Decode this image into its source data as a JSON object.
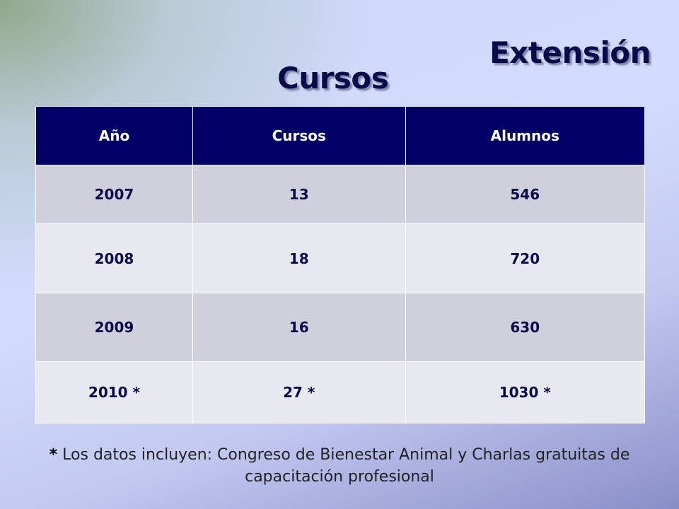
{
  "header": {
    "title": "Extensión",
    "subtitle": "Cursos"
  },
  "table": {
    "columns": [
      "Año",
      "Cursos",
      "Alumnos"
    ],
    "rows": [
      [
        "2007",
        "13",
        "546"
      ],
      [
        "2008",
        "18",
        "720"
      ],
      [
        "2009",
        "16",
        "630"
      ],
      [
        "2010 *",
        "27 *",
        "1030 *"
      ]
    ]
  },
  "footnote": {
    "mark": "*",
    "text": "Los datos incluyen: Congreso de Bienestar Animal y Charlas gratuitas de capacitación  profesional"
  }
}
